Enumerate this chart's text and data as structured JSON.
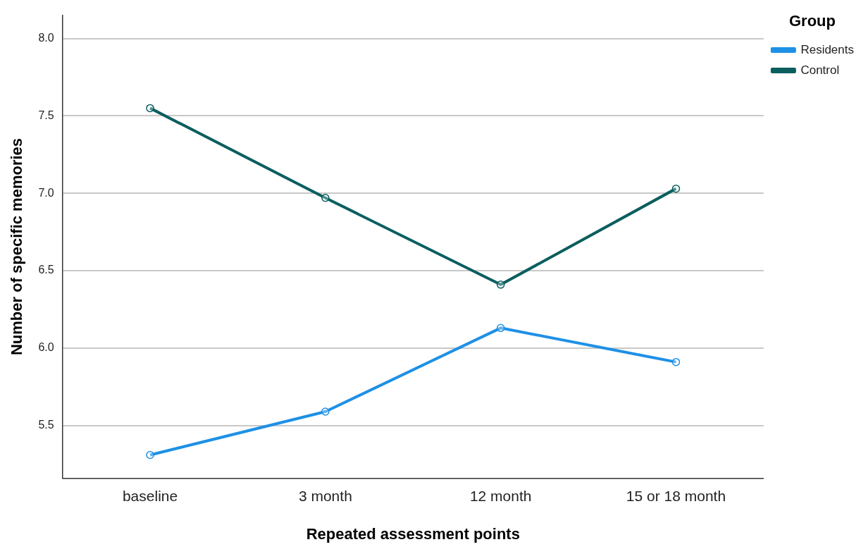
{
  "chart_data": {
    "type": "line",
    "xlabel": "Repeated assessment points",
    "ylabel": "Number of specific memories",
    "legend_title": "Group",
    "categories": [
      "baseline",
      "3 month",
      "12 month",
      "15 or 18 month"
    ],
    "series": [
      {
        "name": "Residents",
        "color": "#1e90e6",
        "values": [
          5.31,
          5.59,
          6.13,
          5.91
        ]
      },
      {
        "name": "Control",
        "color": "#0b5e5e",
        "values": [
          7.55,
          6.97,
          6.41,
          7.03
        ]
      }
    ],
    "ylim": [
      5.16,
      8.15
    ],
    "yticks": [
      {
        "value": 5.5,
        "label": "5.5"
      },
      {
        "value": 6,
        "label": "6.0"
      },
      {
        "value": 6.5,
        "label": "6.5"
      },
      {
        "value": 7,
        "label": "7.0"
      },
      {
        "value": 7.5,
        "label": "7.5"
      },
      {
        "value": 8,
        "label": "8.0"
      }
    ],
    "grid": "y",
    "legend": "top right",
    "marker": "circle",
    "line_style": "solid"
  }
}
